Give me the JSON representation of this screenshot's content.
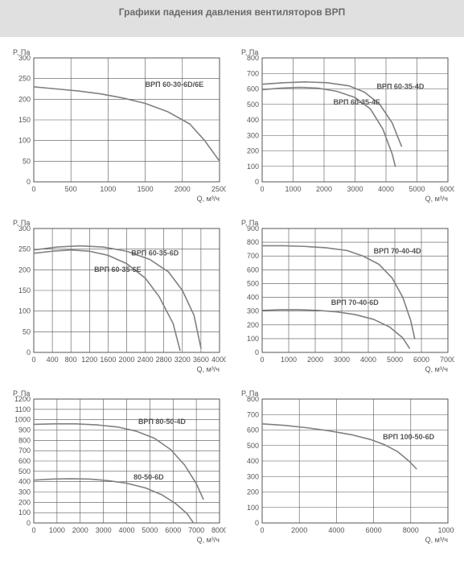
{
  "title": "Графики падения давления вентиляторов ВРП",
  "title_color": "#6a6a6a",
  "title_band_bg": "#e0e0e0",
  "page_bg": "#ffffff",
  "chart_style": {
    "grid_color": "#555555",
    "grid_width": 0.6,
    "border_color": "#555555",
    "border_width": 1,
    "series_color": "#808080",
    "series_width": 1.6,
    "tick_label_color": "#555555",
    "tick_fontsize": 9,
    "axis_label_fontsize": 9,
    "series_label_fontsize": 9,
    "plot_bg": "#ffffff"
  },
  "charts": [
    {
      "id": "c1",
      "y_title": "P, Па",
      "x_title": "Q, м³/ч",
      "xmin": 0,
      "xmax": 2500,
      "x_step": 500,
      "ymin": 0,
      "ymax": 300,
      "y_step": 50,
      "series": [
        {
          "label": "ВРП 60-30-6D/6E",
          "label_xy": [
            1500,
            230
          ],
          "points": [
            [
              0,
              230
            ],
            [
              300,
              225
            ],
            [
              600,
              220
            ],
            [
              900,
              213
            ],
            [
              1200,
              203
            ],
            [
              1500,
              190
            ],
            [
              1800,
              170
            ],
            [
              2100,
              140
            ],
            [
              2300,
              100
            ],
            [
              2500,
              50
            ]
          ]
        }
      ]
    },
    {
      "id": "c2",
      "y_title": "P, Па",
      "x_title": "Q, м³/ч",
      "xmin": 0,
      "xmax": 6000,
      "x_step": 1000,
      "ymin": 0,
      "ymax": 800,
      "y_step": 100,
      "series": [
        {
          "label": "ВРП 60-35-4D",
          "label_xy": [
            3700,
            600
          ],
          "points": [
            [
              0,
              630
            ],
            [
              700,
              640
            ],
            [
              1400,
              645
            ],
            [
              2100,
              640
            ],
            [
              2800,
              620
            ],
            [
              3300,
              580
            ],
            [
              3800,
              500
            ],
            [
              4200,
              380
            ],
            [
              4500,
              230
            ]
          ]
        },
        {
          "label": "ВРП 60-35-4E",
          "label_xy": [
            2300,
            500
          ],
          "points": [
            [
              0,
              595
            ],
            [
              600,
              605
            ],
            [
              1200,
              610
            ],
            [
              1800,
              605
            ],
            [
              2400,
              585
            ],
            [
              3000,
              545
            ],
            [
              3500,
              470
            ],
            [
              3900,
              340
            ],
            [
              4200,
              180
            ],
            [
              4300,
              100
            ]
          ]
        }
      ]
    },
    {
      "id": "c3",
      "y_title": "P, Па",
      "x_title": "Q, м³/ч",
      "xmin": 0,
      "xmax": 4000,
      "x_step": 400,
      "ymin": 0,
      "ymax": 300,
      "y_step": 50,
      "series": [
        {
          "label": "ВРП 60-35-6D",
          "label_xy": [
            2100,
            235
          ],
          "points": [
            [
              0,
              248
            ],
            [
              500,
              255
            ],
            [
              1000,
              258
            ],
            [
              1500,
              255
            ],
            [
              2000,
              245
            ],
            [
              2500,
              225
            ],
            [
              2900,
              195
            ],
            [
              3200,
              150
            ],
            [
              3450,
              90
            ],
            [
              3600,
              10
            ]
          ]
        },
        {
          "label": "ВРП 60-35-6E",
          "label_xy": [
            1300,
            195
          ],
          "points": [
            [
              0,
              240
            ],
            [
              400,
              245
            ],
            [
              800,
              248
            ],
            [
              1200,
              245
            ],
            [
              1600,
              235
            ],
            [
              2000,
              215
            ],
            [
              2400,
              180
            ],
            [
              2700,
              135
            ],
            [
              3000,
              70
            ],
            [
              3150,
              5
            ]
          ]
        }
      ]
    },
    {
      "id": "c4",
      "y_title": "P, Па",
      "x_title": "Q, м³/ч",
      "xmin": 0,
      "xmax": 7000,
      "x_step": 1000,
      "ymin": 0,
      "ymax": 900,
      "y_step": 100,
      "series": [
        {
          "label": "ВРП 70-40-4D",
          "label_xy": [
            4200,
            720
          ],
          "points": [
            [
              0,
              775
            ],
            [
              800,
              775
            ],
            [
              1600,
              770
            ],
            [
              2400,
              760
            ],
            [
              3200,
              740
            ],
            [
              3800,
              700
            ],
            [
              4400,
              640
            ],
            [
              4900,
              540
            ],
            [
              5300,
              400
            ],
            [
              5600,
              230
            ],
            [
              5750,
              100
            ]
          ]
        },
        {
          "label": "ВРП 70-40-6D",
          "label_xy": [
            2600,
            345
          ],
          "points": [
            [
              0,
              305
            ],
            [
              700,
              310
            ],
            [
              1400,
              310
            ],
            [
              2100,
              305
            ],
            [
              2800,
              295
            ],
            [
              3500,
              275
            ],
            [
              4200,
              240
            ],
            [
              4800,
              185
            ],
            [
              5300,
              105
            ],
            [
              5550,
              30
            ]
          ]
        }
      ]
    },
    {
      "id": "c5",
      "y_title": "P, Па",
      "x_title": "Q, м³/ч",
      "xmin": 0,
      "xmax": 8000,
      "x_step": 1000,
      "ymin": 0,
      "ymax": 1200,
      "y_step": 100,
      "series": [
        {
          "label": "ВРП 80-50-4D",
          "label_xy": [
            4500,
            960
          ],
          "points": [
            [
              0,
              955
            ],
            [
              900,
              960
            ],
            [
              1800,
              960
            ],
            [
              2700,
              950
            ],
            [
              3600,
              930
            ],
            [
              4400,
              890
            ],
            [
              5200,
              820
            ],
            [
              5900,
              710
            ],
            [
              6500,
              560
            ],
            [
              7000,
              380
            ],
            [
              7300,
              230
            ]
          ]
        },
        {
          "label": "80-50-6D",
          "label_xy": [
            4300,
            420
          ],
          "points": [
            [
              0,
              415
            ],
            [
              800,
              425
            ],
            [
              1600,
              428
            ],
            [
              2400,
              425
            ],
            [
              3200,
              410
            ],
            [
              4000,
              385
            ],
            [
              4800,
              340
            ],
            [
              5500,
              275
            ],
            [
              6100,
              190
            ],
            [
              6600,
              90
            ],
            [
              6850,
              10
            ]
          ]
        }
      ]
    },
    {
      "id": "c6",
      "y_title": "P, Па",
      "x_title": "Q, м³/ч",
      "xmin": 0,
      "xmax": 10000,
      "x_step": 2000,
      "ymin": 0,
      "ymax": 800,
      "y_step": 100,
      "series": [
        {
          "label": "ВРП 100-50-6D",
          "label_xy": [
            6500,
            540
          ],
          "points": [
            [
              0,
              640
            ],
            [
              1200,
              630
            ],
            [
              2400,
              615
            ],
            [
              3600,
              595
            ],
            [
              4800,
              570
            ],
            [
              5800,
              540
            ],
            [
              6600,
              505
            ],
            [
              7300,
              460
            ],
            [
              7900,
              400
            ],
            [
              8300,
              350
            ]
          ]
        }
      ]
    }
  ]
}
